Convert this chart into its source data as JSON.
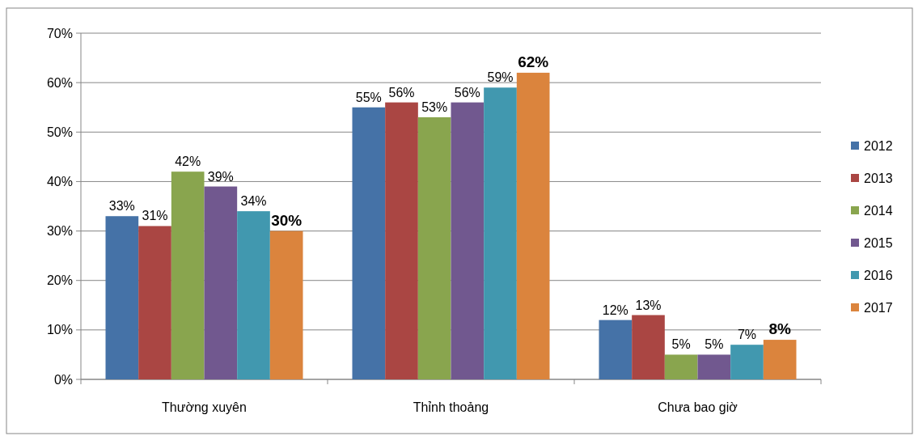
{
  "chart_data": {
    "type": "bar",
    "categories": [
      "Thường xuyên",
      "Thỉnh thoảng",
      "Chưa bao giờ"
    ],
    "series": [
      {
        "name": "2012",
        "color": "#4572a7",
        "values": [
          33,
          55,
          12
        ],
        "value_labels": [
          "33%",
          "55%",
          "12%"
        ]
      },
      {
        "name": "2013",
        "color": "#aa4643",
        "values": [
          31,
          56,
          13
        ],
        "value_labels": [
          "31%",
          "56%",
          "13%"
        ]
      },
      {
        "name": "2014",
        "color": "#89a54e",
        "values": [
          42,
          53,
          5
        ],
        "value_labels": [
          "42%",
          "53%",
          "5%"
        ]
      },
      {
        "name": "2015",
        "color": "#71588f",
        "values": [
          39,
          56,
          5
        ],
        "value_labels": [
          "39%",
          "56%",
          "5%"
        ]
      },
      {
        "name": "2016",
        "color": "#4198af",
        "values": [
          34,
          59,
          7
        ],
        "value_labels": [
          "34%",
          "59%",
          "7%"
        ]
      },
      {
        "name": "2017",
        "color": "#db843d",
        "values": [
          30,
          62,
          8
        ],
        "value_labels": [
          "30%",
          "62%",
          "8%"
        ]
      }
    ],
    "ylim": [
      0,
      70
    ],
    "yticks": [
      {
        "value": 0,
        "label": "0%"
      },
      {
        "value": 10,
        "label": "10%"
      },
      {
        "value": 20,
        "label": "20%"
      },
      {
        "value": 30,
        "label": "30%"
      },
      {
        "value": 40,
        "label": "40%"
      },
      {
        "value": 50,
        "label": "50%"
      },
      {
        "value": 60,
        "label": "60%"
      },
      {
        "value": 70,
        "label": "70%"
      }
    ],
    "grid": "y",
    "legend": "right"
  }
}
